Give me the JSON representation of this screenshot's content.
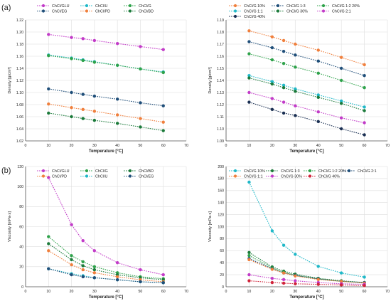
{
  "chart_data": [
    {
      "panel_label": "(a)",
      "type": "line",
      "xlabel": "Temperature [°C]",
      "ylabel": "Density [g/cm³]",
      "xlim": [
        0,
        70
      ],
      "ylim": [
        1.02,
        1.22
      ],
      "xticks": [
        0,
        10,
        20,
        30,
        40,
        50,
        60,
        70
      ],
      "yticks": [
        1.02,
        1.04,
        1.06,
        1.08,
        1.1,
        1.12,
        1.14,
        1.16,
        1.18,
        1.2,
        1.22
      ],
      "tick_decimals": 2,
      "grid": true,
      "legend_columns": 3,
      "legend_placement": "top",
      "x": [
        10,
        20,
        25,
        30,
        40,
        50,
        60
      ],
      "series": [
        {
          "name": "ChCl/GLU",
          "color": "#c23bc8",
          "values": [
            1.196,
            1.191,
            1.189,
            1.186,
            1.181,
            1.176,
            1.171
          ]
        },
        {
          "name": "ChCl/U",
          "color": "#1fb8c8",
          "values": [
            1.162,
            1.157,
            1.154,
            1.151,
            1.145,
            1.139,
            1.134
          ]
        },
        {
          "name": "ChCl/G",
          "color": "#2ea24a",
          "values": [
            1.161,
            1.156,
            1.153,
            1.15,
            1.145,
            1.139,
            1.133
          ]
        },
        {
          "name": "ChCl/EG",
          "color": "#1f4e79",
          "values": [
            1.106,
            1.1,
            1.097,
            1.094,
            1.089,
            1.083,
            1.078
          ]
        },
        {
          "name": "ChCl/PD",
          "color": "#f07f3c",
          "values": [
            1.081,
            1.075,
            1.072,
            1.069,
            1.063,
            1.057,
            1.051
          ]
        },
        {
          "name": "ChCl/BD",
          "color": "#1b7a3a",
          "values": [
            1.066,
            1.06,
            1.057,
            1.054,
            1.049,
            1.043,
            1.037
          ]
        }
      ]
    },
    {
      "panel_label": "",
      "type": "line",
      "xlabel": "Temperature [°C]",
      "ylabel": "Density [g/cm³]",
      "xlim": [
        0,
        70
      ],
      "ylim": [
        1.09,
        1.19
      ],
      "xticks": [
        0,
        10,
        20,
        30,
        40,
        50,
        60,
        70
      ],
      "yticks": [
        1.09,
        1.1,
        1.11,
        1.12,
        1.13,
        1.14,
        1.15,
        1.16,
        1.17,
        1.18,
        1.19
      ],
      "tick_decimals": 2,
      "grid": true,
      "legend_columns": 3,
      "legend_placement": "top",
      "x": [
        10,
        20,
        25,
        30,
        40,
        50,
        60
      ],
      "series": [
        {
          "name": "ChCl/G 10%",
          "color": "#f07f3c",
          "values": [
            1.181,
            1.176,
            1.173,
            1.17,
            1.165,
            1.159,
            1.153
          ]
        },
        {
          "name": "ChCl/G 1:3",
          "color": "#1f4e79",
          "values": [
            1.172,
            1.167,
            1.164,
            1.161,
            1.156,
            1.15,
            1.144
          ]
        },
        {
          "name": "ChCl/G 1:2 20%",
          "color": "#2ea24a",
          "values": [
            1.162,
            1.157,
            1.154,
            1.151,
            1.146,
            1.14,
            1.134
          ]
        },
        {
          "name": "ChCl/G 1:1",
          "color": "#1fb8c8",
          "values": [
            1.144,
            1.139,
            1.136,
            1.133,
            1.128,
            1.123,
            1.118
          ]
        },
        {
          "name": "ChCl/G 30%",
          "color": "#1b7a3a",
          "values": [
            1.142,
            1.137,
            1.134,
            1.131,
            1.126,
            1.121,
            1.115
          ]
        },
        {
          "name": "ChCl/G 2:1",
          "color": "#c23bc8",
          "values": [
            1.13,
            1.125,
            1.122,
            1.119,
            1.114,
            1.109,
            1.105
          ]
        },
        {
          "name": "ChCl/G 40%",
          "color": "#1a2f52",
          "values": [
            1.122,
            1.116,
            1.113,
            1.111,
            1.106,
            1.1,
            1.095
          ]
        }
      ]
    },
    {
      "panel_label": "(b)",
      "type": "line",
      "xlabel": "Temperature [°C]",
      "ylabel": "Viscosity [mPa·s]",
      "xlim": [
        0,
        70
      ],
      "ylim": [
        0,
        120
      ],
      "xticks": [
        0,
        10,
        20,
        30,
        40,
        50,
        60,
        70
      ],
      "yticks": [
        0,
        20,
        40,
        60,
        80,
        100,
        120
      ],
      "tick_decimals": 0,
      "grid": true,
      "legend_columns": 3,
      "legend_placement": "top",
      "x": [
        10,
        20,
        25,
        30,
        40,
        50,
        60
      ],
      "series": [
        {
          "name": "ChCl/GLU",
          "color": "#c23bc8",
          "values": [
            109,
            62,
            46,
            36,
            24,
            17,
            12
          ]
        },
        {
          "name": "ChCl/G",
          "color": "#2ea24a",
          "values": [
            50,
            31,
            25,
            20,
            14,
            10,
            8
          ]
        },
        {
          "name": "ChCl/BD",
          "color": "#1b7a3a",
          "values": [
            43,
            27,
            21,
            17,
            12,
            9,
            7
          ]
        },
        {
          "name": "ChCl/PD",
          "color": "#f07f3c",
          "values": [
            36,
            22,
            17,
            14,
            10,
            7,
            5
          ]
        },
        {
          "name": "ChCl/U",
          "color": "#1fb8c8",
          "values": [
            18,
            13,
            11,
            9,
            7,
            5,
            4
          ]
        },
        {
          "name": "ChCl/EG",
          "color": "#1f4e79",
          "values": [
            18,
            12,
            10,
            9,
            7,
            5,
            4
          ]
        }
      ]
    },
    {
      "panel_label": "",
      "type": "line",
      "xlabel": "Temperature [°C]",
      "ylabel": "Viscosity [mPa·s]",
      "xlim": [
        0,
        70
      ],
      "ylim": [
        0,
        200
      ],
      "xticks": [
        0,
        10,
        20,
        30,
        40,
        50,
        60,
        70
      ],
      "yticks": [
        0,
        20,
        40,
        60,
        80,
        100,
        120,
        140,
        160,
        180,
        200
      ],
      "tick_decimals": 0,
      "grid": true,
      "legend_columns": 4,
      "legend_placement": "top",
      "x": [
        10,
        20,
        25,
        30,
        40,
        50,
        60
      ],
      "series": [
        {
          "name": "ChCl/G 10%",
          "color": "#1fb8c8",
          "values": [
            174,
            93,
            69,
            54,
            34,
            23,
            16
          ]
        },
        {
          "name": "ChCl/G 1:3",
          "color": "#1b7a3a",
          "values": [
            57,
            33,
            26,
            21,
            14,
            10,
            7
          ]
        },
        {
          "name": "ChCl/G 1:2 20%",
          "color": "#2ea24a",
          "values": [
            52,
            31,
            24,
            19,
            13,
            9,
            7
          ]
        },
        {
          "name": "ChCl/G 2:1",
          "color": "#1f4e79",
          "values": [
            47,
            30,
            23,
            19,
            13,
            9,
            7
          ]
        },
        {
          "name": "ChCl/G 1:1",
          "color": "#f07f3c",
          "values": [
            45,
            29,
            23,
            18,
            12,
            9,
            6
          ]
        },
        {
          "name": "ChCl/G 30%",
          "color": "#c23bc8",
          "values": [
            20,
            14,
            12,
            10,
            7,
            5,
            4
          ]
        },
        {
          "name": "ChCl/G 40%",
          "color": "#d0233a",
          "values": [
            10,
            7,
            6,
            5,
            4,
            3,
            2
          ]
        }
      ]
    }
  ]
}
